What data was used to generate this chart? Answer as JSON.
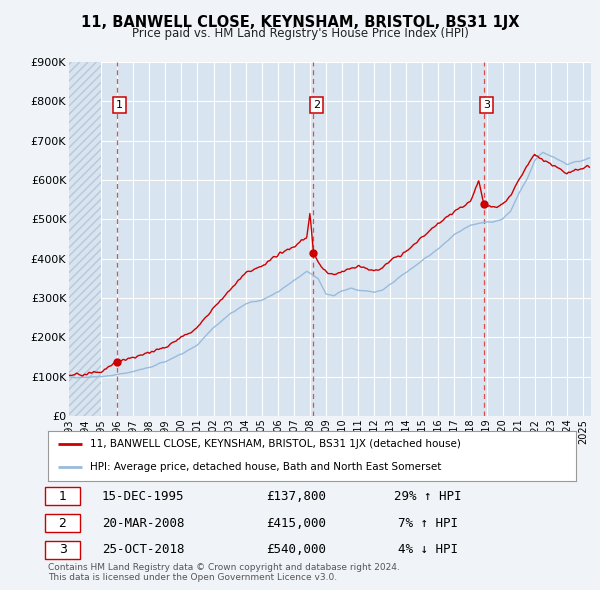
{
  "title": "11, BANWELL CLOSE, KEYNSHAM, BRISTOL, BS31 1JX",
  "subtitle": "Price paid vs. HM Land Registry's House Price Index (HPI)",
  "background_color": "#f0f4f8",
  "plot_bg_color": "#d8e4f0",
  "hatch_color": "#c0ccd8",
  "grid_color": "#ffffff",
  "xmin": 1993.0,
  "xmax": 2025.5,
  "ymin": 0,
  "ymax": 900000,
  "yticks": [
    0,
    100000,
    200000,
    300000,
    400000,
    500000,
    600000,
    700000,
    800000,
    900000
  ],
  "ytick_labels": [
    "£0",
    "£100K",
    "£200K",
    "£300K",
    "£400K",
    "£500K",
    "£600K",
    "£700K",
    "£800K",
    "£900K"
  ],
  "sale_color": "#cc0000",
  "hpi_color": "#99bbdd",
  "dashed_line_color": "#dd4444",
  "transactions": [
    {
      "num": 1,
      "date_str": "15-DEC-1995",
      "year": 1995.96,
      "price": 137800,
      "pct": "29%",
      "dir": "↑"
    },
    {
      "num": 2,
      "date_str": "20-MAR-2008",
      "year": 2008.22,
      "price": 415000,
      "pct": "7%",
      "dir": "↑"
    },
    {
      "num": 3,
      "date_str": "25-OCT-2018",
      "year": 2018.82,
      "price": 540000,
      "pct": "4%",
      "dir": "↓"
    }
  ],
  "legend_sale_label": "11, BANWELL CLOSE, KEYNSHAM, BRISTOL, BS31 1JX (detached house)",
  "legend_hpi_label": "HPI: Average price, detached house, Bath and North East Somerset",
  "footnote1": "Contains HM Land Registry data © Crown copyright and database right 2024.",
  "footnote2": "This data is licensed under the Open Government Licence v3.0.",
  "hpi_anchors": [
    [
      1993.0,
      98000
    ],
    [
      1994.0,
      99000
    ],
    [
      1995.0,
      100000
    ],
    [
      1996.0,
      105000
    ],
    [
      1997.0,
      113000
    ],
    [
      1998.0,
      123000
    ],
    [
      1999.0,
      138000
    ],
    [
      2000.0,
      158000
    ],
    [
      2001.0,
      180000
    ],
    [
      2002.0,
      225000
    ],
    [
      2003.0,
      258000
    ],
    [
      2004.0,
      285000
    ],
    [
      2005.0,
      295000
    ],
    [
      2006.0,
      315000
    ],
    [
      2007.0,
      345000
    ],
    [
      2007.8,
      368000
    ],
    [
      2008.5,
      350000
    ],
    [
      2009.0,
      310000
    ],
    [
      2009.5,
      305000
    ],
    [
      2010.0,
      318000
    ],
    [
      2010.5,
      325000
    ],
    [
      2011.0,
      320000
    ],
    [
      2011.5,
      318000
    ],
    [
      2012.0,
      315000
    ],
    [
      2012.5,
      320000
    ],
    [
      2013.0,
      335000
    ],
    [
      2014.0,
      365000
    ],
    [
      2015.0,
      395000
    ],
    [
      2016.0,
      425000
    ],
    [
      2017.0,
      460000
    ],
    [
      2018.0,
      485000
    ],
    [
      2018.5,
      490000
    ],
    [
      2019.0,
      492000
    ],
    [
      2019.5,
      495000
    ],
    [
      2020.0,
      500000
    ],
    [
      2020.5,
      520000
    ],
    [
      2021.0,
      565000
    ],
    [
      2021.5,
      600000
    ],
    [
      2022.0,
      650000
    ],
    [
      2022.5,
      670000
    ],
    [
      2023.0,
      660000
    ],
    [
      2023.5,
      650000
    ],
    [
      2024.0,
      640000
    ],
    [
      2024.5,
      645000
    ],
    [
      2025.0,
      650000
    ],
    [
      2025.3,
      655000
    ]
  ],
  "sale_anchors": [
    [
      1993.0,
      104000
    ],
    [
      1994.0,
      106000
    ],
    [
      1995.0,
      112000
    ],
    [
      1995.96,
      137800
    ],
    [
      1996.5,
      143000
    ],
    [
      1997.0,
      148000
    ],
    [
      1998.0,
      162000
    ],
    [
      1999.0,
      175000
    ],
    [
      2000.0,
      200000
    ],
    [
      2001.0,
      225000
    ],
    [
      2002.0,
      275000
    ],
    [
      2003.0,
      320000
    ],
    [
      2004.0,
      365000
    ],
    [
      2005.0,
      380000
    ],
    [
      2006.0,
      410000
    ],
    [
      2007.0,
      430000
    ],
    [
      2007.8,
      455000
    ],
    [
      2008.0,
      515000
    ],
    [
      2008.22,
      415000
    ],
    [
      2008.5,
      390000
    ],
    [
      2009.0,
      365000
    ],
    [
      2009.5,
      358000
    ],
    [
      2010.0,
      368000
    ],
    [
      2010.5,
      375000
    ],
    [
      2011.0,
      380000
    ],
    [
      2011.5,
      375000
    ],
    [
      2012.0,
      368000
    ],
    [
      2012.5,
      375000
    ],
    [
      2013.0,
      395000
    ],
    [
      2014.0,
      420000
    ],
    [
      2015.0,
      455000
    ],
    [
      2016.0,
      490000
    ],
    [
      2017.0,
      520000
    ],
    [
      2018.0,
      545000
    ],
    [
      2018.5,
      600000
    ],
    [
      2018.82,
      540000
    ],
    [
      2019.0,
      535000
    ],
    [
      2019.5,
      530000
    ],
    [
      2020.0,
      540000
    ],
    [
      2020.5,
      560000
    ],
    [
      2021.0,
      600000
    ],
    [
      2021.5,
      635000
    ],
    [
      2022.0,
      665000
    ],
    [
      2022.5,
      650000
    ],
    [
      2023.0,
      640000
    ],
    [
      2023.5,
      630000
    ],
    [
      2024.0,
      615000
    ],
    [
      2024.5,
      625000
    ],
    [
      2025.0,
      630000
    ],
    [
      2025.3,
      635000
    ]
  ]
}
